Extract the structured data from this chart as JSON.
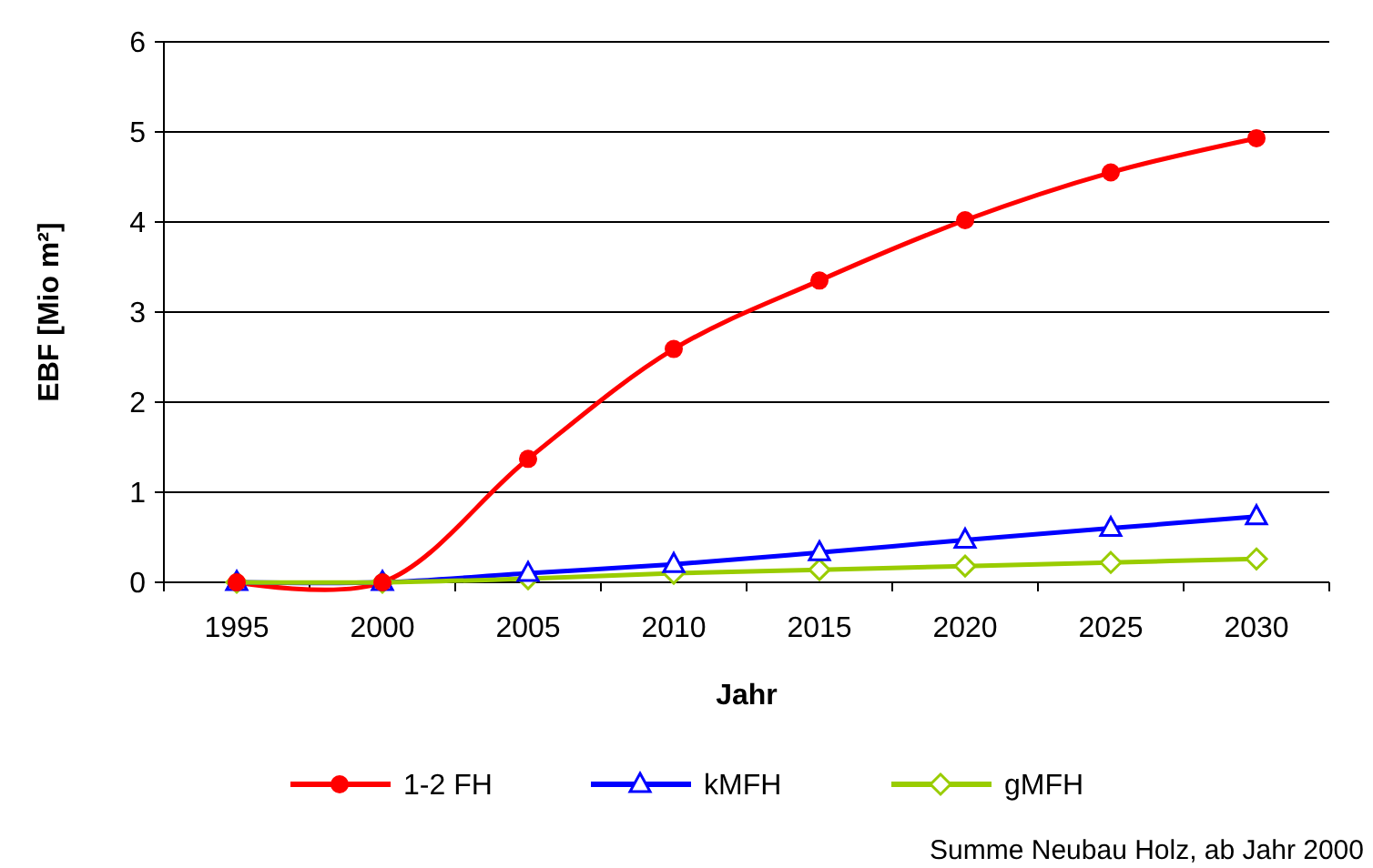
{
  "chart_data": {
    "type": "line",
    "xlabel": "Jahr",
    "ylabel": "EBF [Mio m²]",
    "categories": [
      "1995",
      "2000",
      "2005",
      "2010",
      "2015",
      "2020",
      "2025",
      "2030"
    ],
    "series": [
      {
        "name": "1-2 FH",
        "color": "#ff0000",
        "marker": "circle",
        "values": [
          0,
          0,
          1.37,
          2.59,
          3.35,
          4.02,
          4.55,
          4.93
        ]
      },
      {
        "name": "kMFH",
        "color": "#0000ff",
        "marker": "triangle",
        "values": [
          0,
          0,
          0.1,
          0.2,
          0.33,
          0.47,
          0.6,
          0.73
        ]
      },
      {
        "name": "gMFH",
        "color": "#99cc00",
        "marker": "diamond",
        "values": [
          0,
          0,
          0.04,
          0.1,
          0.14,
          0.18,
          0.22,
          0.26
        ]
      }
    ],
    "ylim": [
      0,
      6
    ],
    "yticks": [
      0,
      1,
      2,
      3,
      4,
      5,
      6
    ],
    "grid": "y",
    "legend": "bottom",
    "annotations": [
      "Summe Neubau Holz, ab Jahr 2000"
    ]
  }
}
